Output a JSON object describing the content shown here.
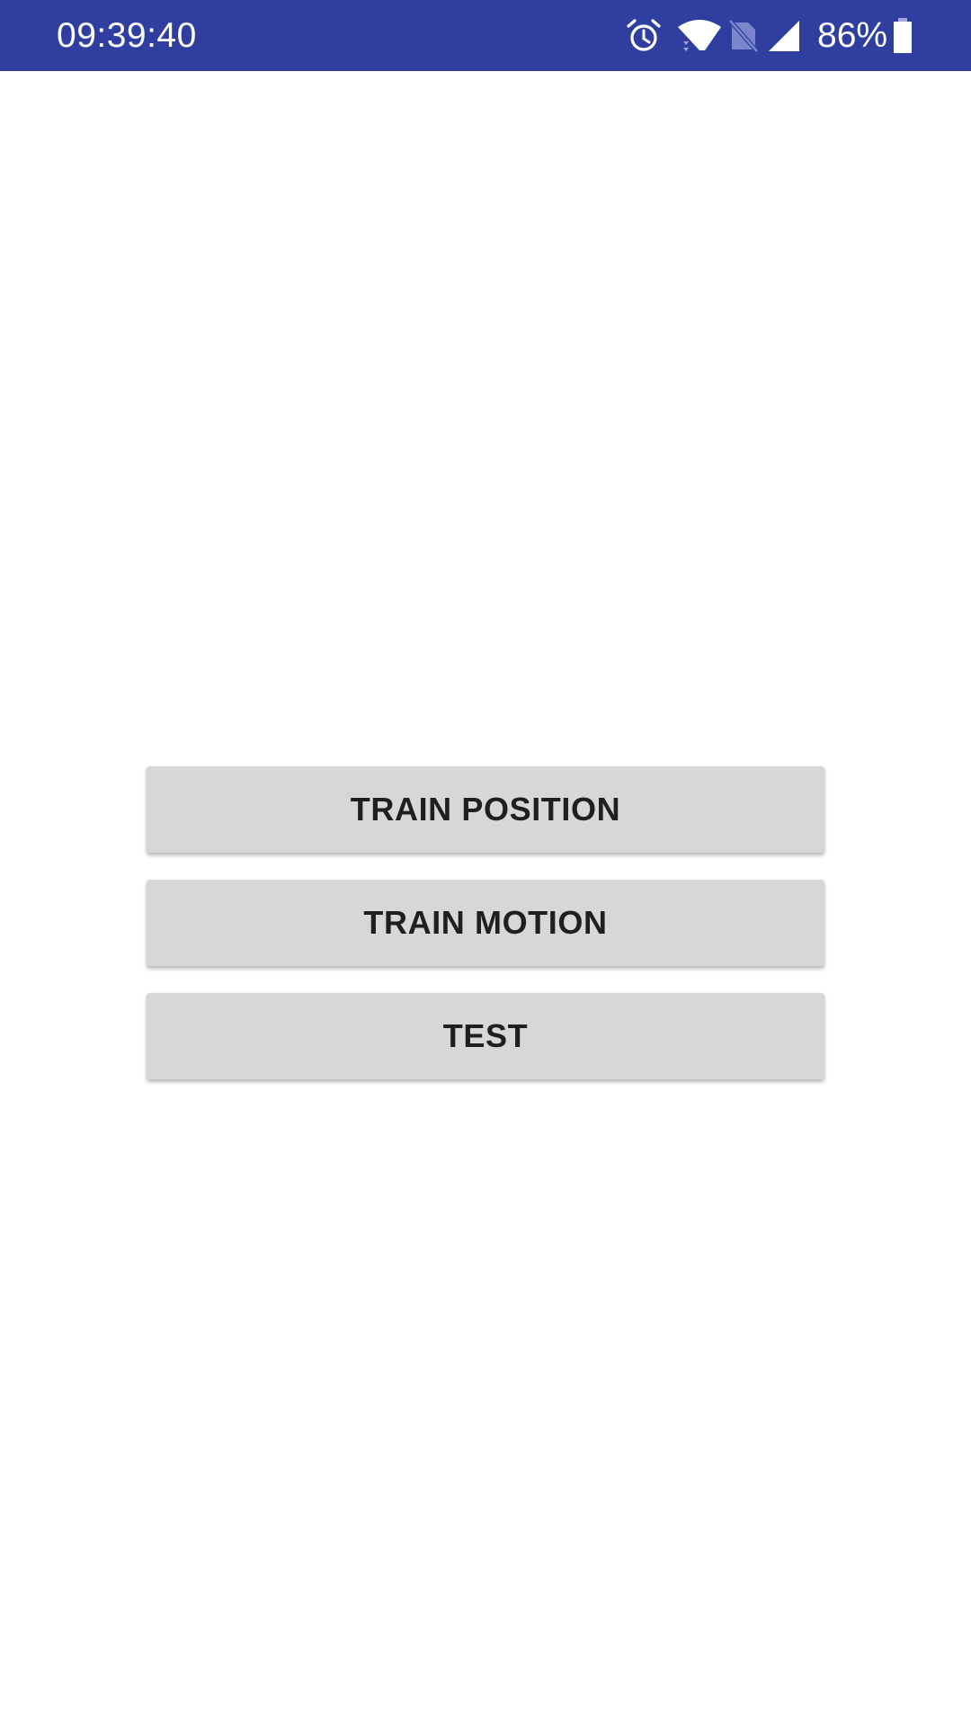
{
  "status_bar": {
    "time": "09:39:40",
    "battery_percent": "86%",
    "background_color": "#303F9F",
    "icons": [
      "alarm-icon",
      "wifi-icon",
      "no-sim-icon",
      "signal-icon",
      "battery-icon"
    ]
  },
  "main": {
    "buttons": [
      {
        "label": "TRAIN POSITION"
      },
      {
        "label": "TRAIN MOTION"
      },
      {
        "label": "TEST"
      }
    ],
    "button_color": "#d6d7d7"
  }
}
